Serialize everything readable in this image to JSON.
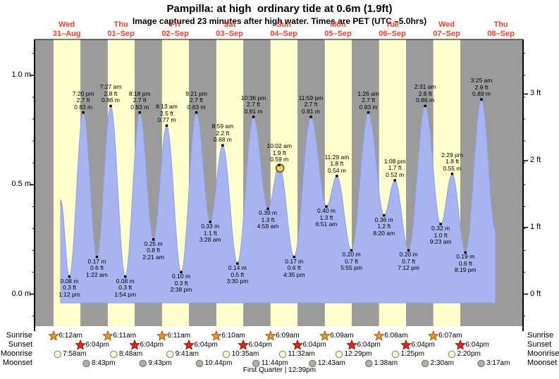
{
  "title": "Pampilla: at high  ordinary tide at 0.6m (1.9ft)",
  "subtitle": "Image captured 23 minutes after high water. Times are PET (UTC –5.0hrs)",
  "colors": {
    "night_band": "#9b9b9b",
    "daylight_band": "#ffffcd",
    "tide_fill": "#a8b4f0",
    "tide_stroke": "#8ea0e8",
    "date_red": "#f4402f",
    "axis": "#000000",
    "sunrise_star": "#e8922e",
    "sunrise_star_outline": "#a85a14",
    "sunset_star": "#e2261a",
    "sunset_star_outline": "#8c130b",
    "moonrise_fill": "#ffffd2",
    "moonrise_stroke": "#909090",
    "moonset_fill": "#b0b0a2",
    "moonset_stroke": "#7d7d7d",
    "now_marker_fill": "#f5d342",
    "now_marker_stroke": "#4a4a4a"
  },
  "chart_data": {
    "type": "area",
    "title": "Pampilla: at high  ordinary tide at 0.6m (1.9ft)",
    "ylabel_left_unit": "m",
    "ylabel_right_unit": "ft",
    "ylim_m": [
      -0.15,
      1.16
    ],
    "grid": false,
    "y_ticks_m": [
      {
        "m": 0.0,
        "label": "0.0 m"
      },
      {
        "m": 0.5,
        "label": "0.5 m"
      },
      {
        "m": 1.0,
        "label": "1.0 m"
      }
    ],
    "y_ticks_ft": [
      {
        "ft": 0,
        "label": "0 ft"
      },
      {
        "ft": 1,
        "label": "1 ft"
      },
      {
        "ft": 2,
        "label": "2 ft"
      },
      {
        "ft": 3,
        "label": "3 ft"
      }
    ],
    "days": [
      {
        "name": "Wed",
        "date": "31–Aug",
        "sunrise_h": 6.2,
        "sunrise": "6:12am",
        "sunset_h": 18.067,
        "sunset": "6:04pm",
        "moonrise_h": 7.967,
        "moonrise": "7:58am",
        "moonset_h": 20.717,
        "moonset": "8:43pm"
      },
      {
        "name": "Thu",
        "date": "01–Sep",
        "sunrise_h": 6.183,
        "sunrise": "6:11am",
        "sunset_h": 18.067,
        "sunset": "6:04pm",
        "moonrise_h": 8.8,
        "moonrise": "8:48am",
        "moonset_h": 21.717,
        "moonset": "9:43pm"
      },
      {
        "name": "Fri",
        "date": "02–Sep",
        "sunrise_h": 6.183,
        "sunrise": "6:11am",
        "sunset_h": 18.067,
        "sunset": "6:04pm",
        "moonrise_h": 9.683,
        "moonrise": "9:41am",
        "moonset_h": 22.733,
        "moonset": "10:44pm"
      },
      {
        "name": "Sat",
        "date": "03–Sep",
        "sunrise_h": 6.167,
        "sunrise": "6:10am",
        "sunset_h": 18.067,
        "sunset": "6:04pm",
        "moonrise_h": 10.583,
        "moonrise": "10:35am",
        "moonset_h": 23.733,
        "moonset": "11:44pm"
      },
      {
        "name": "Sun",
        "date": "04–Sep",
        "sunrise_h": 6.15,
        "sunrise": "6:09am",
        "sunset_h": 18.067,
        "sunset": "6:04pm",
        "moonrise_h": 11.533,
        "moonrise": "11:32am",
        "moonset_h": null,
        "moonset": null
      },
      {
        "name": "Mon",
        "date": "05–Sep",
        "sunrise_h": 6.15,
        "sunrise": "6:09am",
        "sunset_h": 18.067,
        "sunset": "6:04pm",
        "moonrise_h": 12.483,
        "moonrise": "12:29pm",
        "moonset_h": 0.717,
        "moonset": "12:43am"
      },
      {
        "name": "Tue",
        "date": "06–Sep",
        "sunrise_h": 6.133,
        "sunrise": "6:08am",
        "sunset_h": 18.067,
        "sunset": "6:04pm",
        "moonrise_h": 13.417,
        "moonrise": "1:25pm",
        "moonset_h": 1.633,
        "moonset": "1:38am"
      },
      {
        "name": "Wed",
        "date": "07–Sep",
        "sunrise_h": 6.117,
        "sunrise": "6:07am",
        "sunset_h": 18.067,
        "sunset": "6:04pm",
        "moonrise_h": 14.333,
        "moonrise": "2:20pm",
        "moonset_h": 2.5,
        "moonset": "2:30am"
      },
      {
        "name": "Thu",
        "date": "08–Sep",
        "sunrise_h": null,
        "sunrise": null,
        "sunset_h": null,
        "sunset": null,
        "moonrise_h": null,
        "moonrise": null,
        "moonset_h": 3.283,
        "moonset": "3:17am"
      }
    ],
    "tide_events": [
      {
        "kind": "low",
        "t": 13.2,
        "h": 0.08,
        "time": "1:12 pm",
        "ft": "0.3 ft",
        "m": "0.08 m"
      },
      {
        "kind": "high",
        "t": 19.33,
        "h": 0.83,
        "time": "7:20 pm",
        "ft": "2.7 ft",
        "m": "0.83 m"
      },
      {
        "kind": "low",
        "t": 25.37,
        "h": 0.17,
        "time": "1:22 am",
        "ft": "0.6 ft",
        "m": "0.17 m"
      },
      {
        "kind": "high",
        "t": 31.45,
        "h": 0.86,
        "time": "7:27 am",
        "ft": "2.8 ft",
        "m": "0.86 m"
      },
      {
        "kind": "low",
        "t": 37.9,
        "h": 0.08,
        "time": "1:54 pm",
        "ft": "0.3 ft",
        "m": "0.08 m"
      },
      {
        "kind": "high",
        "t": 44.3,
        "h": 0.83,
        "time": "8:18 pm",
        "ft": "2.7 ft",
        "m": "0.83 m"
      },
      {
        "kind": "low",
        "t": 50.35,
        "h": 0.25,
        "time": "2:21 am",
        "ft": "0.8 ft",
        "m": "0.25 m"
      },
      {
        "kind": "high",
        "t": 56.22,
        "h": 0.77,
        "time": "8:13 am",
        "ft": "2.5 ft",
        "m": "0.77 m"
      },
      {
        "kind": "low",
        "t": 62.63,
        "h": 0.1,
        "time": "2:38 pm",
        "ft": "0.3 ft",
        "m": "0.10 m"
      },
      {
        "kind": "high",
        "t": 69.35,
        "h": 0.83,
        "time": "9:21 pm",
        "ft": "2.7 ft",
        "m": "0.83 m"
      },
      {
        "kind": "low",
        "t": 75.47,
        "h": 0.33,
        "time": "3:28 am",
        "ft": "1.1 ft",
        "m": "0.33 m"
      },
      {
        "kind": "high",
        "t": 80.98,
        "h": 0.68,
        "time": "8:59 am",
        "ft": "2.2 ft",
        "m": "0.68 m"
      },
      {
        "kind": "low",
        "t": 87.5,
        "h": 0.14,
        "time": "3:30 pm",
        "ft": "0.5 ft",
        "m": "0.14 m"
      },
      {
        "kind": "high",
        "t": 94.6,
        "h": 0.81,
        "time": "10:36 pm",
        "ft": "2.7 ft",
        "m": "0.81 m"
      },
      {
        "kind": "low",
        "t": 100.98,
        "h": 0.39,
        "time": "4:59 am",
        "ft": "1.3 ft",
        "m": "0.39 m"
      },
      {
        "kind": "high",
        "t": 106.03,
        "h": 0.59,
        "time": "10:02 am",
        "ft": "1.9 ft",
        "m": "0.59 m"
      },
      {
        "kind": "low",
        "t": 112.58,
        "h": 0.17,
        "time": "4:35 pm",
        "ft": "0.6 ft",
        "m": "0.17 m"
      },
      {
        "kind": "high",
        "t": 119.98,
        "h": 0.81,
        "time": "11:59 pm",
        "ft": "2.7 ft",
        "m": "0.81 m"
      },
      {
        "kind": "low",
        "t": 126.85,
        "h": 0.4,
        "time": "6:51 am",
        "ft": "1.3 ft",
        "m": "0.40 m"
      },
      {
        "kind": "high",
        "t": 131.48,
        "h": 0.54,
        "time": "11:29 am",
        "ft": "1.8 ft",
        "m": "0.54 m"
      },
      {
        "kind": "low",
        "t": 137.92,
        "h": 0.2,
        "time": "5:55 pm",
        "ft": "0.7 ft",
        "m": "0.20 m"
      },
      {
        "kind": "high",
        "t": 145.43,
        "h": 0.83,
        "time": "1:26 am",
        "ft": "2.7 ft",
        "m": "0.83 m"
      },
      {
        "kind": "low",
        "t": 152.33,
        "h": 0.36,
        "time": "8:20 am",
        "ft": "1.2 ft",
        "m": "0.36 m"
      },
      {
        "kind": "high",
        "t": 157.13,
        "h": 0.52,
        "time": "1:08 pm",
        "ft": "1.7 ft",
        "m": "0.52 m"
      },
      {
        "kind": "low",
        "t": 163.2,
        "h": 0.2,
        "time": "7:12 pm",
        "ft": "0.7 ft",
        "m": "0.20 m"
      },
      {
        "kind": "high",
        "t": 170.52,
        "h": 0.86,
        "time": "2:31 am",
        "ft": "2.8 ft",
        "m": "0.86 m"
      },
      {
        "kind": "low",
        "t": 177.38,
        "h": 0.32,
        "time": "9:23 am",
        "ft": "1.0 ft",
        "m": "0.32 m"
      },
      {
        "kind": "high",
        "t": 182.48,
        "h": 0.55,
        "time": "2:29 pm",
        "ft": "1.8 ft",
        "m": "0.55 m"
      },
      {
        "kind": "low",
        "t": 188.32,
        "h": 0.19,
        "time": "8:19 pm",
        "ft": "0.6 ft",
        "m": "0.19 m"
      },
      {
        "kind": "high",
        "t": 195.42,
        "h": 0.89,
        "time": "3:25 am",
        "ft": "2.9 ft",
        "m": "0.89 m"
      }
    ],
    "curve_start": {
      "t": 9.33,
      "h": 0.43
    },
    "curve_end": {
      "t": 201.6,
      "h": 0.29
    },
    "now_marker": {
      "event_index": 15
    }
  },
  "astro": {
    "row_labels": [
      "Sunrise",
      "Sunset",
      "Moonrise",
      "Moonset"
    ],
    "phase": "First Quarter | 12:39pm"
  }
}
